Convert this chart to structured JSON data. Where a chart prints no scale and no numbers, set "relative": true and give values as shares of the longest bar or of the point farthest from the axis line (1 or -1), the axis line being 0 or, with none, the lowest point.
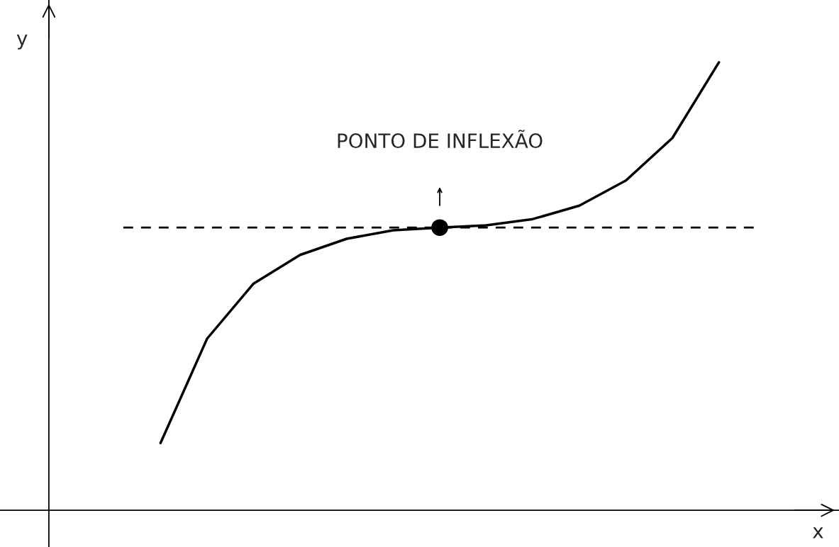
{
  "chart_data": {
    "type": "line",
    "relative": true,
    "xlabel": "x",
    "ylabel": "y",
    "categories": [
      null,
      null,
      null,
      null,
      null,
      null,
      null,
      null,
      null,
      null,
      null,
      null,
      null
    ],
    "series": [
      {
        "color": "#000000",
        "values": [
          0.15,
          0.383,
          0.506,
          0.57,
          0.606,
          0.625,
          0.631,
          0.636,
          0.65,
          0.68,
          0.736,
          0.831,
          1.0
        ]
      }
    ],
    "ref_lines": [
      {
        "axis": "y",
        "value": 0.631,
        "color": "#000000",
        "line_style": "dashed"
      }
    ],
    "annotations": [
      "PONTO DE INFLEXÃO"
    ]
  }
}
